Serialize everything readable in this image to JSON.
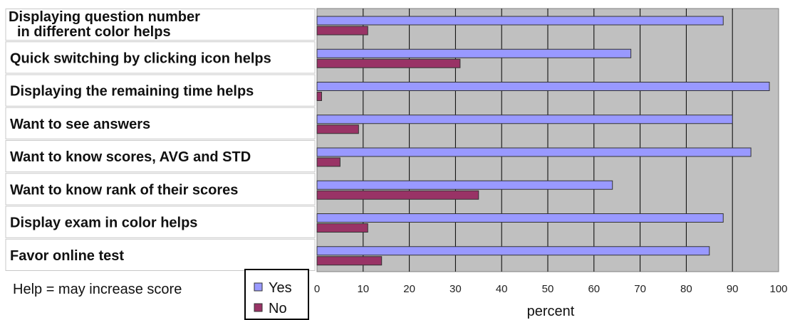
{
  "chart_data": {
    "type": "bar",
    "orientation": "horizontal",
    "categories": [
      [
        "Displaying question number",
        "in different color helps"
      ],
      [
        "Quick switching by clicking icon helps"
      ],
      [
        "Displaying the remaining time helps"
      ],
      [
        "Want to see answers"
      ],
      [
        "Want to know scores, AVG and STD"
      ],
      [
        "Want to know rank of their scores"
      ],
      [
        "Display exam in color helps"
      ],
      [
        "Favor online test"
      ]
    ],
    "series": [
      {
        "name": "Yes",
        "color": "#9999ff",
        "values": [
          88,
          68,
          98,
          90,
          94,
          64,
          88,
          85
        ]
      },
      {
        "name": "No",
        "color": "#993366",
        "values": [
          11,
          31,
          1,
          9,
          5,
          35,
          11,
          14
        ]
      }
    ],
    "xlabel": "percent",
    "xlim": [
      0,
      100
    ],
    "xticks": [
      "0",
      "10",
      "20",
      "30",
      "40",
      "50",
      "60",
      "70",
      "80",
      "90",
      "100"
    ],
    "grid": true,
    "legend_position": "bottom-left",
    "plot_background": "#c0c0c0",
    "note": "Help = may increase score"
  }
}
